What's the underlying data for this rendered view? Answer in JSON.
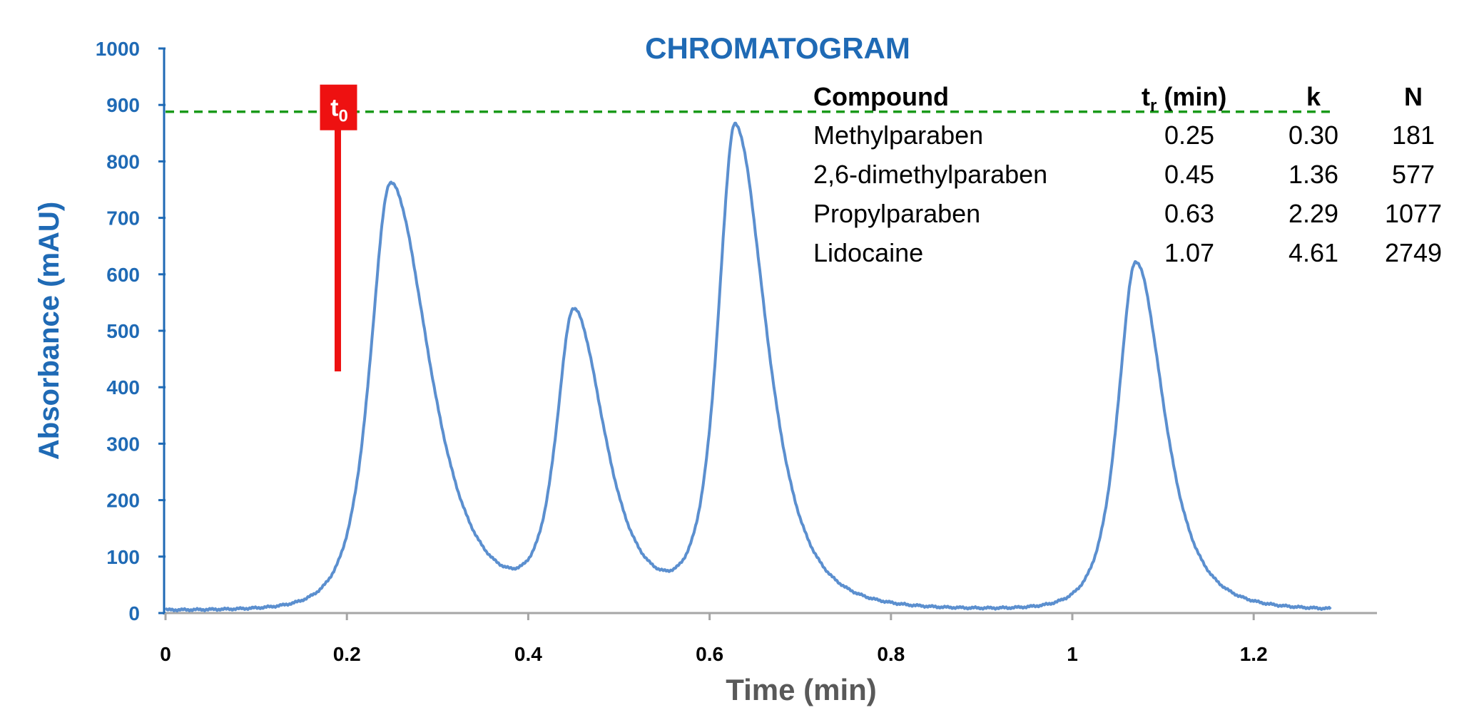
{
  "chart_data": {
    "type": "line",
    "title": "CHROMATOGRAM",
    "xlabel": "Time (min)",
    "ylabel": "Absorbance (mAU)",
    "xlim": [
      0,
      1.34
    ],
    "ylim": [
      0,
      1000
    ],
    "x_ticks": [
      "0",
      "0.2",
      "0.4",
      "0.6",
      "0.8",
      "1",
      "1.2"
    ],
    "x_tick_values": [
      0,
      0.2,
      0.4,
      0.6,
      0.8,
      1.0,
      1.2
    ],
    "y_ticks": [
      "0",
      "100",
      "200",
      "300",
      "400",
      "500",
      "600",
      "700",
      "800",
      "900",
      "1000"
    ],
    "y_tick_values": [
      0,
      100,
      200,
      300,
      400,
      500,
      600,
      700,
      800,
      900,
      1000
    ],
    "grid": false,
    "line_color": "#5b8fcf",
    "x_end": 1.285,
    "peaks": [
      {
        "time": 0.248,
        "height": 762
      },
      {
        "time": 0.45,
        "height": 525
      },
      {
        "time": 0.628,
        "height": 858
      },
      {
        "time": 1.07,
        "height": 622
      }
    ],
    "reference_line": {
      "y": 888,
      "x_end": 1.285,
      "color": "#1a9a1a",
      "style": "dashed"
    },
    "t0_marker": {
      "label": "t",
      "subscript": "0",
      "time": 0.19,
      "y_top": 888,
      "y_bottom": 428,
      "color": "#ee1111"
    },
    "table": {
      "headers": [
        "Compound",
        "t",
        "r",
        " (min)",
        "k",
        "N"
      ],
      "rows": [
        [
          "Methylparaben",
          "0.25",
          "0.30",
          "181"
        ],
        [
          "2,6-dimethylparaben",
          "0.45",
          "1.36",
          "577"
        ],
        [
          "Propylparaben",
          "0.63",
          "2.29",
          "1077"
        ],
        [
          "Lidocaine",
          "1.07",
          "4.61",
          "2749"
        ]
      ]
    },
    "colors": {
      "axis_text": "#1f6ab5",
      "axis_line": "#a6a6a6"
    }
  }
}
